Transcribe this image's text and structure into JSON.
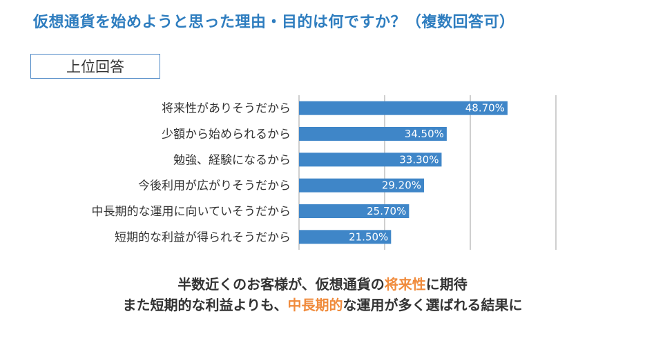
{
  "title": "仮想通貨を始めようと思った理由・目的は何ですか？（複数回答可）",
  "badge": "上位回答",
  "chart_data": {
    "type": "bar",
    "orientation": "horizontal",
    "categories": [
      "将来性がありそうだから",
      "少額から始められるから",
      "勉強、経験になるから",
      "今後利用が広がりそうだから",
      "中長期的な運用に向いていそうだから",
      "短期的な利益が得られそうだから"
    ],
    "values": [
      48.7,
      34.5,
      33.3,
      29.2,
      25.7,
      21.5
    ],
    "value_labels": [
      "48.70%",
      "34.50%",
      "33.30%",
      "29.20%",
      "25.70%",
      "21.50%"
    ],
    "xlim": [
      0,
      60
    ],
    "gridlines": [
      20,
      40,
      60
    ],
    "bar_color": "#3f86c8",
    "grid_color": "#bfbfbf"
  },
  "summary": {
    "line1": {
      "pre": "半数近くのお客様が、仮想通貨の",
      "highlight": "将来性",
      "post": "に期待"
    },
    "line2": {
      "pre": "また短期的な利益よりも、",
      "highlight": "中長期的",
      "post": "な運用が多く選ばれる結果に"
    },
    "highlight_color": "#f08b3c"
  }
}
